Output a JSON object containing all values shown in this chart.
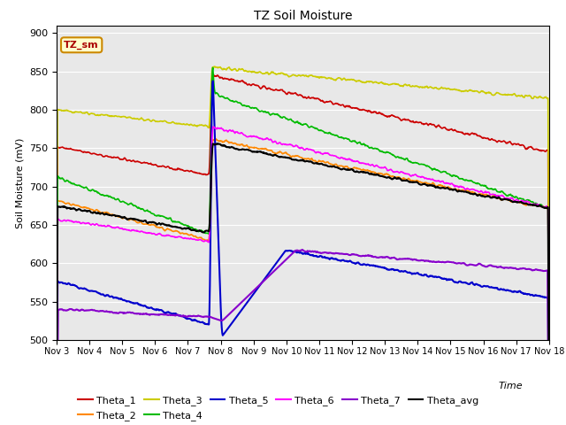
{
  "title": "TZ Soil Moisture",
  "ylabel": "Soil Moisture (mV)",
  "xlabel": "Time",
  "ylim": [
    500,
    910
  ],
  "yticks": [
    500,
    550,
    600,
    650,
    700,
    750,
    800,
    850,
    900
  ],
  "x_labels": [
    "Nov 3",
    "Nov 4",
    "Nov 5",
    "Nov 6",
    "Nov 7",
    "Nov 8",
    "Nov 9",
    "Nov 10",
    "Nov 11",
    "Nov 12",
    "Nov 13",
    "Nov 14",
    "Nov 15",
    "Nov 16",
    "Nov 17",
    "Nov 18"
  ],
  "background_color": "#e8e8e8",
  "plot_bg": "#e8e8e8",
  "series_colors": {
    "Theta_1": "#cc0000",
    "Theta_2": "#ff8800",
    "Theta_3": "#cccc00",
    "Theta_4": "#00bb00",
    "Theta_5": "#0000cc",
    "Theta_6": "#ff00ff",
    "Theta_7": "#8800cc",
    "Theta_avg": "#000000"
  },
  "annotation_text": "TZ_sm",
  "annotation_color": "#aa0000",
  "annotation_bg": "#ffffcc",
  "annotation_border": "#cc8800"
}
